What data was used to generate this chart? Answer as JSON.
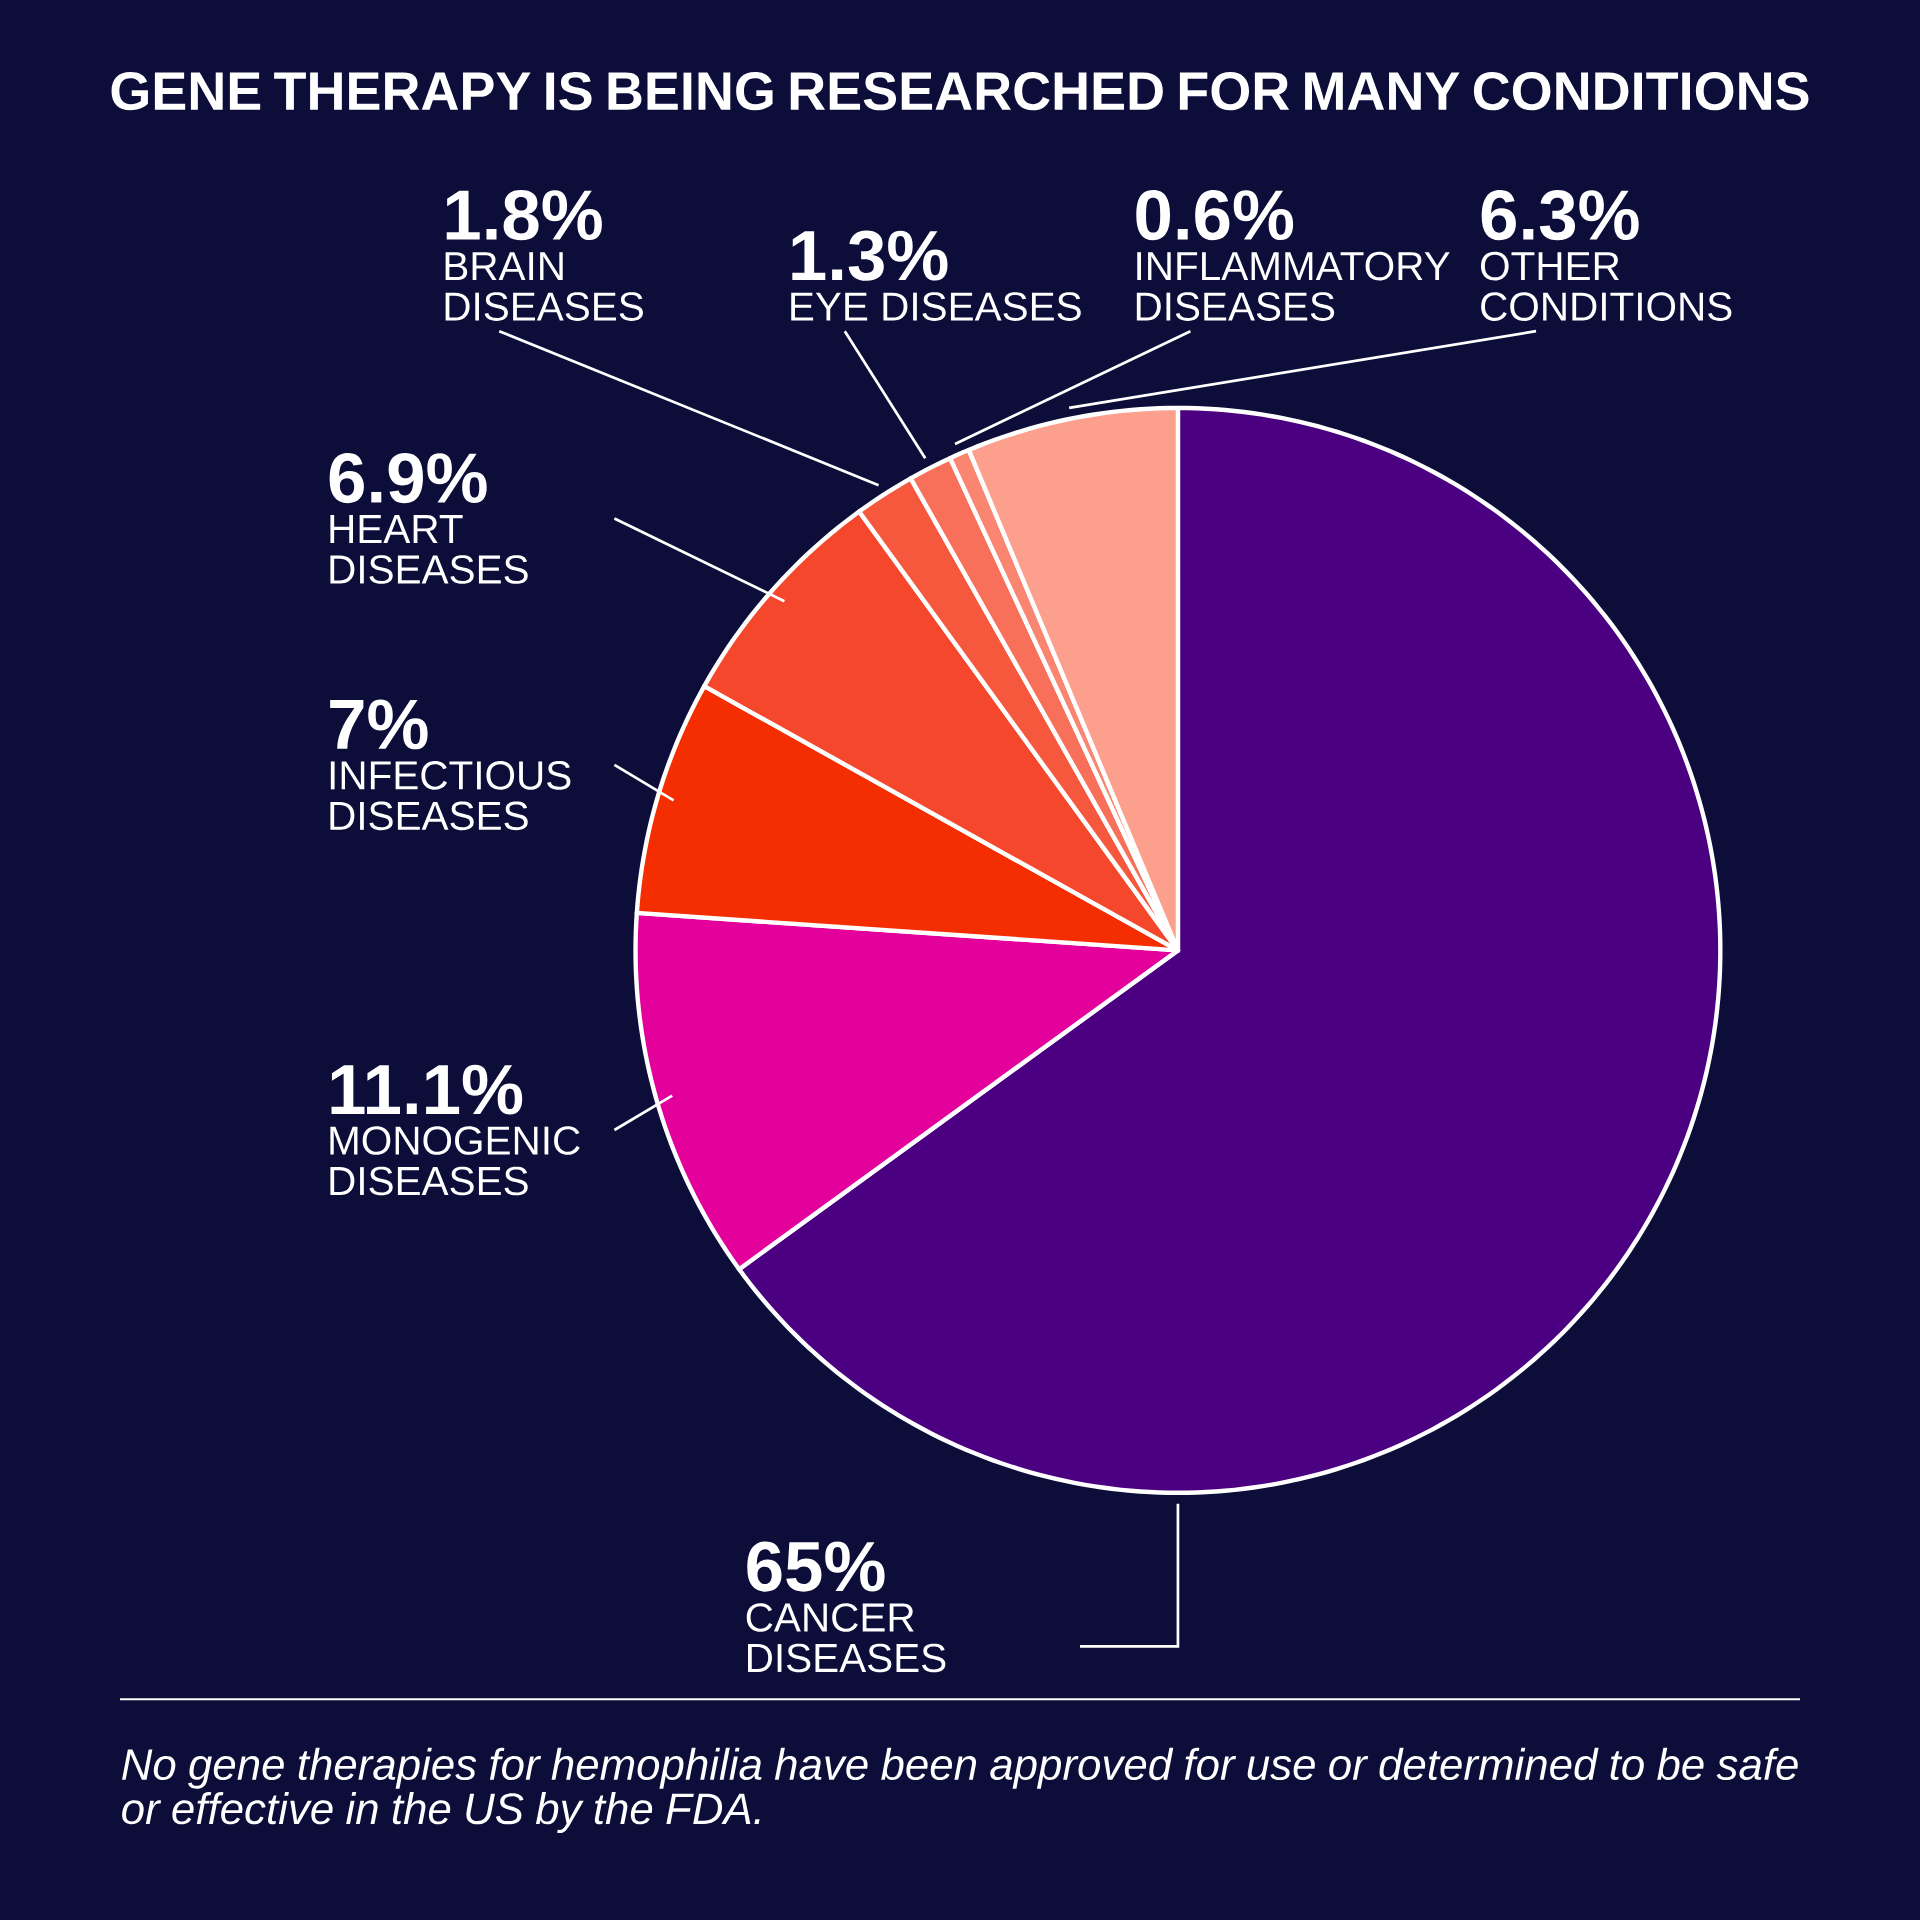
{
  "chart_data": {
    "type": "pie",
    "title": "GENE THERAPY IS BEING RESEARCHED FOR MANY CONDITIONS",
    "categories": [
      "CANCER DISEASES",
      "MONOGENIC DISEASES",
      "INFECTIOUS DISEASES",
      "HEART DISEASES",
      "BRAIN DISEASES",
      "EYE DISEASES",
      "INFLAMMATORY DISEASES",
      "OTHER CONDITIONS"
    ],
    "values": [
      65,
      11.1,
      7,
      6.9,
      1.8,
      1.3,
      0.6,
      6.3
    ],
    "colors": [
      "#4a0080",
      "#e3009b",
      "#f42e00",
      "#f4472b",
      "#f6583d",
      "#f87059",
      "#fa8570",
      "#fca08d"
    ],
    "value_labels": [
      "65%",
      "11.1%",
      "7%",
      "6.9%",
      "1.8%",
      "1.3%",
      "0.6%",
      "6.3%"
    ],
    "annotations": [
      "No gene therapies for hemophilia have been approved for use or determined to be safe or effective in the US by the FDA."
    ]
  }
}
